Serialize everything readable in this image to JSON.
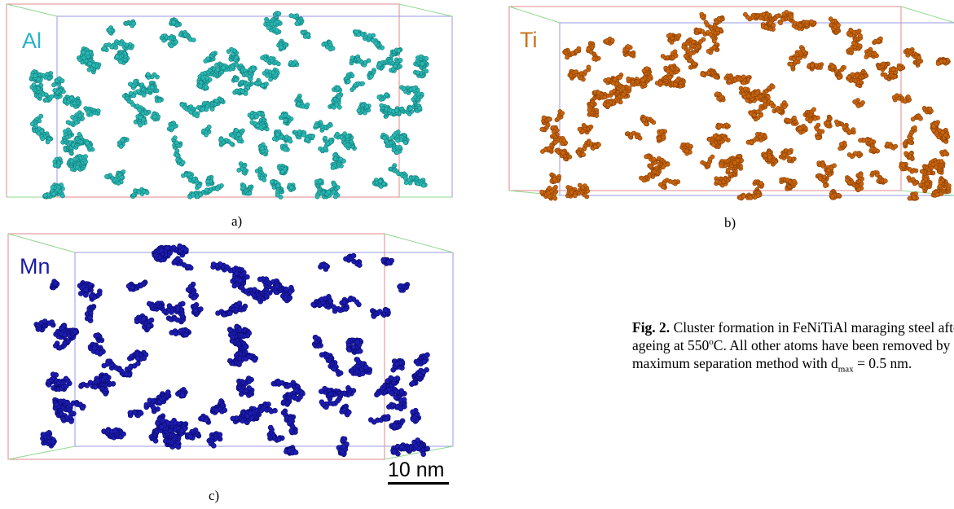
{
  "panels": [
    {
      "id": "a",
      "element": "Al",
      "sub_label": "a)",
      "atom_color": "#2ab8b4",
      "atom_edge": "#137e7b"
    },
    {
      "id": "b",
      "element": "Ti",
      "sub_label": "b)",
      "atom_color": "#c9650d",
      "atom_edge": "#8a3f05"
    },
    {
      "id": "c",
      "element": "Mn",
      "sub_label": "c)",
      "atom_color": "#1c1cb0",
      "atom_edge": "#0a0a6e"
    }
  ],
  "element_label_colors": {
    "Al": "#2ab2c8",
    "Ti": "#c8741a",
    "Mn": "#1a1aa8"
  },
  "box_edge_colors": {
    "back": "#9a9ae6",
    "front": "#e08a8a",
    "side": "#8fd88f"
  },
  "scale_bar": {
    "label": "10 nm"
  },
  "caption": {
    "figure_label": "Fig. 2.",
    "line1": " Cluster formation in FeNiTiAl maraging steel afte",
    "line2_pre": "ageing at 550",
    "degree_sup": "o",
    "line2_post": "C. All other atoms have been removed by",
    "line3_pre": "maximum separation method with d",
    "dmax_sub": "max",
    "line3_post": " = 0.5 nm."
  }
}
